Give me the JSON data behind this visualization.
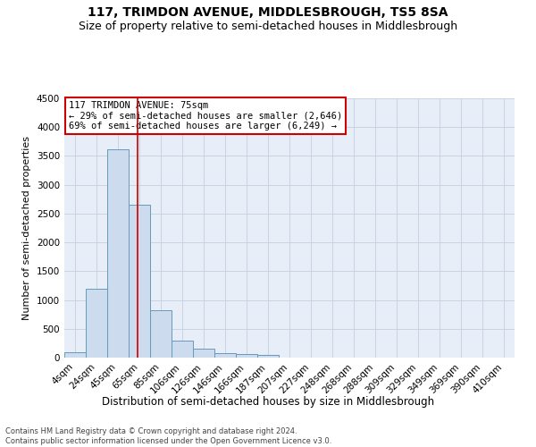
{
  "title": "117, TRIMDON AVENUE, MIDDLESBROUGH, TS5 8SA",
  "subtitle": "Size of property relative to semi-detached houses in Middlesbrough",
  "xlabel": "Distribution of semi-detached houses by size in Middlesbrough",
  "ylabel": "Number of semi-detached properties",
  "categories": [
    "4sqm",
    "24sqm",
    "45sqm",
    "65sqm",
    "85sqm",
    "106sqm",
    "126sqm",
    "146sqm",
    "166sqm",
    "187sqm",
    "207sqm",
    "227sqm",
    "248sqm",
    "268sqm",
    "288sqm",
    "309sqm",
    "329sqm",
    "349sqm",
    "369sqm",
    "390sqm",
    "410sqm"
  ],
  "values": [
    100,
    1200,
    3620,
    2650,
    820,
    300,
    150,
    80,
    60,
    40,
    0,
    0,
    0,
    0,
    0,
    0,
    0,
    0,
    0,
    0,
    0
  ],
  "bar_color": "#ccdcee",
  "bar_edge_color": "#6699bb",
  "redline_bin_index": 3,
  "annotation_title": "117 TRIMDON AVENUE: 75sqm",
  "annotation_line1": "← 29% of semi-detached houses are smaller (2,646)",
  "annotation_line2": "69% of semi-detached houses are larger (6,249) →",
  "annotation_box_color": "#ffffff",
  "annotation_box_edge_color": "#cc0000",
  "redline_color": "#cc0000",
  "grid_color": "#c8d4e4",
  "background_color": "#e8eef8",
  "ylim": [
    0,
    4500
  ],
  "yticks": [
    0,
    500,
    1000,
    1500,
    2000,
    2500,
    3000,
    3500,
    4000,
    4500
  ],
  "footer": "Contains HM Land Registry data © Crown copyright and database right 2024.\nContains public sector information licensed under the Open Government Licence v3.0.",
  "title_fontsize": 10,
  "subtitle_fontsize": 9,
  "tick_fontsize": 7.5,
  "ylabel_fontsize": 8,
  "xlabel_fontsize": 8.5
}
